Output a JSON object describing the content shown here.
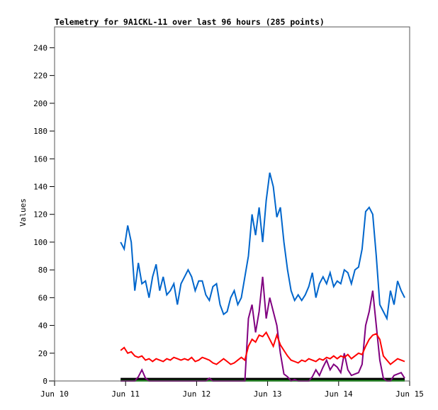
{
  "chart_data": {
    "type": "line",
    "title": "Telemetry for 9A1CKL-11 over last 96 hours (285 points)",
    "xlabel": "",
    "ylabel": "Values",
    "xlim": [
      10,
      15
    ],
    "ylim": [
      0,
      255
    ],
    "x_ticks": [
      10,
      11,
      12,
      13,
      14,
      15
    ],
    "x_tick_labels": [
      "Jun 10",
      "Jun 11",
      "Jun 12",
      "Jun 13",
      "Jun 14",
      "Jun 15"
    ],
    "y_ticks": [
      0,
      20,
      40,
      60,
      80,
      100,
      120,
      140,
      160,
      180,
      200,
      220,
      240
    ],
    "y_tick_labels": [
      "0",
      "20",
      "40",
      "60",
      "80",
      "100",
      "120",
      "140",
      "160",
      "180",
      "200",
      "220",
      "240"
    ],
    "grid": false,
    "x_start": 10.93,
    "x_step": 0.05,
    "series": [
      {
        "name": "blue",
        "color": "#0066cc",
        "values": [
          100,
          95,
          112,
          100,
          65,
          85,
          70,
          72,
          60,
          75,
          84,
          65,
          75,
          62,
          65,
          70,
          55,
          70,
          75,
          80,
          75,
          65,
          72,
          72,
          62,
          58,
          68,
          70,
          55,
          48,
          50,
          60,
          65,
          55,
          60,
          75,
          90,
          120,
          105,
          125,
          100,
          130,
          150,
          140,
          118,
          125,
          100,
          80,
          65,
          58,
          62,
          58,
          62,
          68,
          78,
          60,
          70,
          75,
          70,
          78,
          68,
          72,
          70,
          80,
          78,
          70,
          80,
          82,
          95,
          122,
          125,
          120,
          90,
          55,
          50,
          45,
          65,
          55,
          72,
          65,
          60
        ]
      },
      {
        "name": "red",
        "color": "#ff0000",
        "values": [
          22,
          24,
          20,
          21,
          18,
          17,
          18,
          15,
          16,
          14,
          16,
          15,
          14,
          16,
          15,
          17,
          16,
          15,
          16,
          15,
          17,
          14,
          15,
          17,
          16,
          15,
          13,
          12,
          14,
          16,
          14,
          12,
          13,
          15,
          17,
          15,
          25,
          30,
          28,
          33,
          32,
          35,
          30,
          25,
          33,
          26,
          22,
          18,
          15,
          14,
          13,
          15,
          14,
          16,
          15,
          14,
          16,
          15,
          17,
          16,
          18,
          16,
          18,
          17,
          19,
          16,
          18,
          20,
          19,
          25,
          30,
          33,
          34,
          30,
          18,
          15,
          12,
          14,
          16,
          15,
          14
        ]
      },
      {
        "name": "purple",
        "color": "#800080",
        "values": [
          0,
          0,
          0,
          0,
          0,
          3,
          8,
          2,
          0,
          0,
          0,
          0,
          0,
          0,
          0,
          0,
          0,
          0,
          0,
          0,
          0,
          0,
          0,
          0,
          0,
          2,
          0,
          0,
          0,
          0,
          0,
          0,
          0,
          0,
          0,
          0,
          45,
          55,
          35,
          50,
          75,
          45,
          60,
          50,
          40,
          20,
          5,
          3,
          0,
          1,
          0,
          0,
          0,
          0,
          3,
          8,
          4,
          10,
          15,
          8,
          12,
          10,
          6,
          20,
          8,
          4,
          5,
          6,
          12,
          40,
          50,
          65,
          40,
          15,
          2,
          0,
          0,
          4,
          5,
          6,
          2
        ]
      },
      {
        "name": "black",
        "color": "#000000",
        "values": [
          1.5,
          1.5,
          1.5,
          1.5,
          1.5,
          1.5,
          1.5,
          1.5,
          1.5,
          1.5,
          1.5,
          1.5,
          1.5,
          1.5,
          1.5,
          1.5,
          1.5,
          1.5,
          1.5,
          1.5,
          1.5,
          1.5,
          1.5,
          1.5,
          1.5,
          1.5,
          1.5,
          1.5,
          1.5,
          1.5,
          1.5,
          1.5,
          1.5,
          1.5,
          1.5,
          1.5,
          1.5,
          1.5,
          1.5,
          1.5,
          1.5,
          1.5,
          1.5,
          1.5,
          1.5,
          1.5,
          1.5,
          1.5,
          1.5,
          1.5,
          1.5,
          1.5,
          1.5,
          1.5,
          1.5,
          1.5,
          1.5,
          1.5,
          1.5,
          1.5,
          1.5,
          1.5,
          1.5,
          1.5,
          1.5,
          1.5,
          1.5,
          1.5,
          1.5,
          1.5,
          1.5,
          1.5,
          1.5,
          1.5,
          1.5,
          1.5,
          1.5,
          1.5,
          1.5,
          1.5,
          1.5
        ]
      },
      {
        "name": "green",
        "color": "#00bb00",
        "values": [
          0.3,
          0.3,
          0.3,
          0.3,
          0.3,
          0.3,
          0.3,
          0.3,
          0.3,
          0.3,
          0.3,
          0.3,
          0.3,
          0.3,
          0.3,
          0.3,
          0.3,
          0.3,
          0.3,
          0.3,
          0.3,
          0.3,
          0.3,
          0.3,
          0.3,
          0.3,
          0.3,
          0.3,
          0.3,
          0.3,
          0.3,
          0.3,
          0.3,
          0.3,
          0.3,
          0.3,
          0.3,
          0.3,
          0.3,
          0.3,
          0.3,
          0.3,
          0.3,
          0.3,
          0.3,
          0.3,
          0.3,
          0.3,
          0.3,
          0.3,
          0.3,
          0.3,
          0.3,
          0.3,
          0.3,
          0.3,
          0.3,
          0.3,
          0.3,
          0.3,
          0.3,
          0.3,
          0.3,
          0.3,
          0.3,
          0.3,
          0.3,
          0.3,
          0.3,
          0.3,
          0.3,
          0.3,
          0.3,
          0.3,
          0.3,
          0.3,
          0.3,
          0.3,
          0.3,
          0.3,
          0.3
        ]
      }
    ]
  }
}
